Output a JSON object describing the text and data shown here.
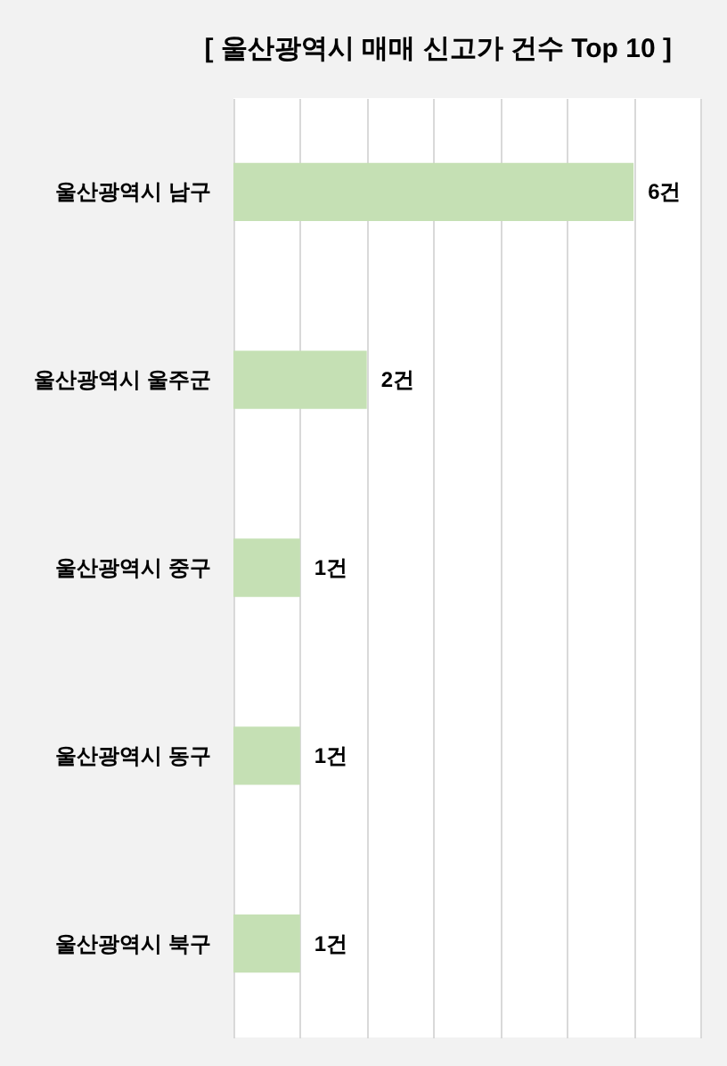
{
  "chart_data": {
    "type": "bar",
    "orientation": "horizontal",
    "title": "[ 울산광역시 매매 신고가 건수 Top 10 ]",
    "categories": [
      "울산광역시 남구",
      "울산광역시 울주군",
      "울산광역시 중구",
      "울산광역시 동구",
      "울산광역시 북구"
    ],
    "values": [
      6,
      2,
      1,
      1,
      1
    ],
    "value_labels": [
      "6건",
      "2건",
      "1건",
      "1건",
      "1건"
    ],
    "color": "#c5e0b4",
    "xlim": [
      0,
      7
    ],
    "xticks": [
      {
        "value": 0,
        "label": null
      },
      {
        "value": 1,
        "label": null
      },
      {
        "value": 2,
        "label": null
      },
      {
        "value": 3,
        "label": null
      },
      {
        "value": 4,
        "label": null
      },
      {
        "value": 5,
        "label": null
      },
      {
        "value": 6,
        "label": null
      },
      {
        "value": 7,
        "label": null
      }
    ],
    "grid": "x",
    "tick_labels": "y"
  }
}
